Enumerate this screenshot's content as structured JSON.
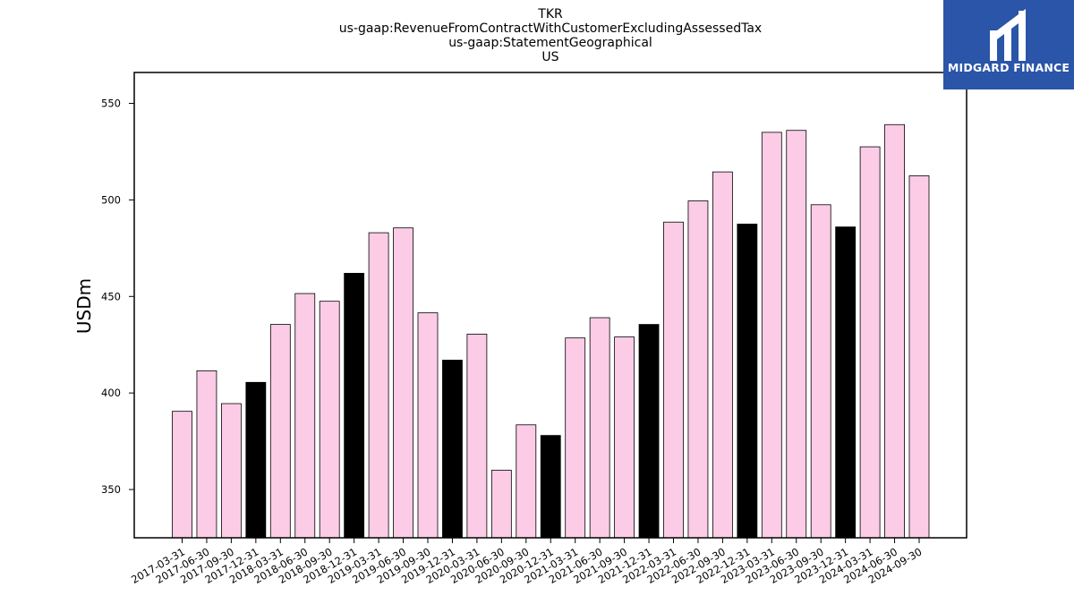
{
  "chart_data": {
    "type": "bar",
    "title_lines": [
      "TKR",
      "us-gaap:RevenueFromContractWithCustomerExcludingAssessedTax",
      "us-gaap:StatementGeographical",
      "US"
    ],
    "xlabel": "",
    "ylabel": "USDm",
    "ylim": [
      325,
      566
    ],
    "yticks": [
      350,
      400,
      450,
      500,
      550
    ],
    "categories": [
      "2017-03-31",
      "2017-06-30",
      "2017-09-30",
      "2017-12-31",
      "2018-03-31",
      "2018-06-30",
      "2018-09-30",
      "2018-12-31",
      "2019-03-31",
      "2019-06-30",
      "2019-09-30",
      "2019-12-31",
      "2020-03-31",
      "2020-06-30",
      "2020-09-30",
      "2020-12-31",
      "2021-03-31",
      "2021-06-30",
      "2021-09-30",
      "2021-12-31",
      "2022-03-31",
      "2022-06-30",
      "2022-09-30",
      "2022-12-31",
      "2023-03-31",
      "2023-06-30",
      "2023-09-30",
      "2023-12-31",
      "2024-03-31",
      "2024-06-30",
      "2024-09-30"
    ],
    "values": [
      390.5,
      411.5,
      394.5,
      405.5,
      435.5,
      451.5,
      447.5,
      462.0,
      483.0,
      485.5,
      441.5,
      417.0,
      430.5,
      360.0,
      383.5,
      378.0,
      428.5,
      439.0,
      429.0,
      435.5,
      488.5,
      499.5,
      514.5,
      487.5,
      535.0,
      536.0,
      497.5,
      486.0,
      527.5,
      539.0,
      512.5
    ],
    "highlight_quarter_end": "12-31",
    "colors": {
      "normal": "#fccce6",
      "highlight": "#000000",
      "edge": "#000000"
    },
    "grid": false,
    "legend": "none"
  },
  "logo": {
    "text": "MIDGARD FINANCE",
    "color": "#2a55a8"
  }
}
